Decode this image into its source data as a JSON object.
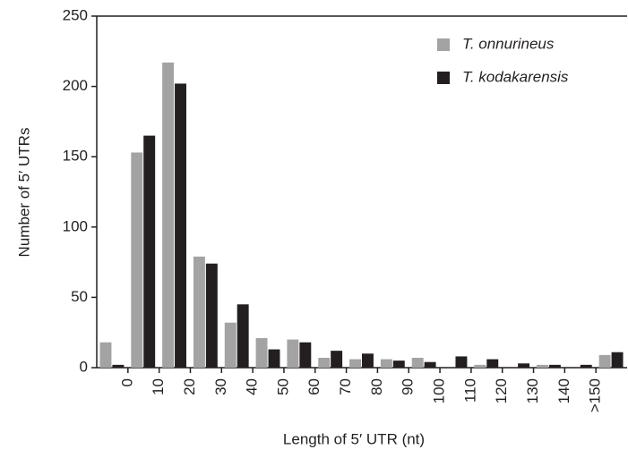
{
  "chart_data": {
    "type": "bar",
    "x_label": "Length of 5′ UTR (nt)",
    "y_label": "Number of 5′ UTRs",
    "categories": [
      null,
      "0",
      "10",
      "20",
      "30",
      "40",
      "50",
      "60",
      "70",
      "80",
      "90",
      "100",
      "110",
      "120",
      "130",
      "140",
      ">150"
    ],
    "series": [
      {
        "name": "T. onnurineus",
        "color": "#a3a3a3",
        "values": [
          18,
          153,
          217,
          79,
          32,
          21,
          20,
          7,
          6,
          6,
          7,
          0,
          2,
          0,
          2,
          0,
          9
        ]
      },
      {
        "name": "T. kodakarensis",
        "color": "#231f20",
        "values": [
          2,
          165,
          202,
          74,
          45,
          13,
          18,
          12,
          10,
          5,
          4,
          8,
          6,
          3,
          2,
          2,
          11
        ]
      }
    ],
    "ylim": [
      0,
      250
    ],
    "yticks": [
      0,
      50,
      100,
      150,
      200,
      250
    ],
    "legend": "top-right"
  }
}
